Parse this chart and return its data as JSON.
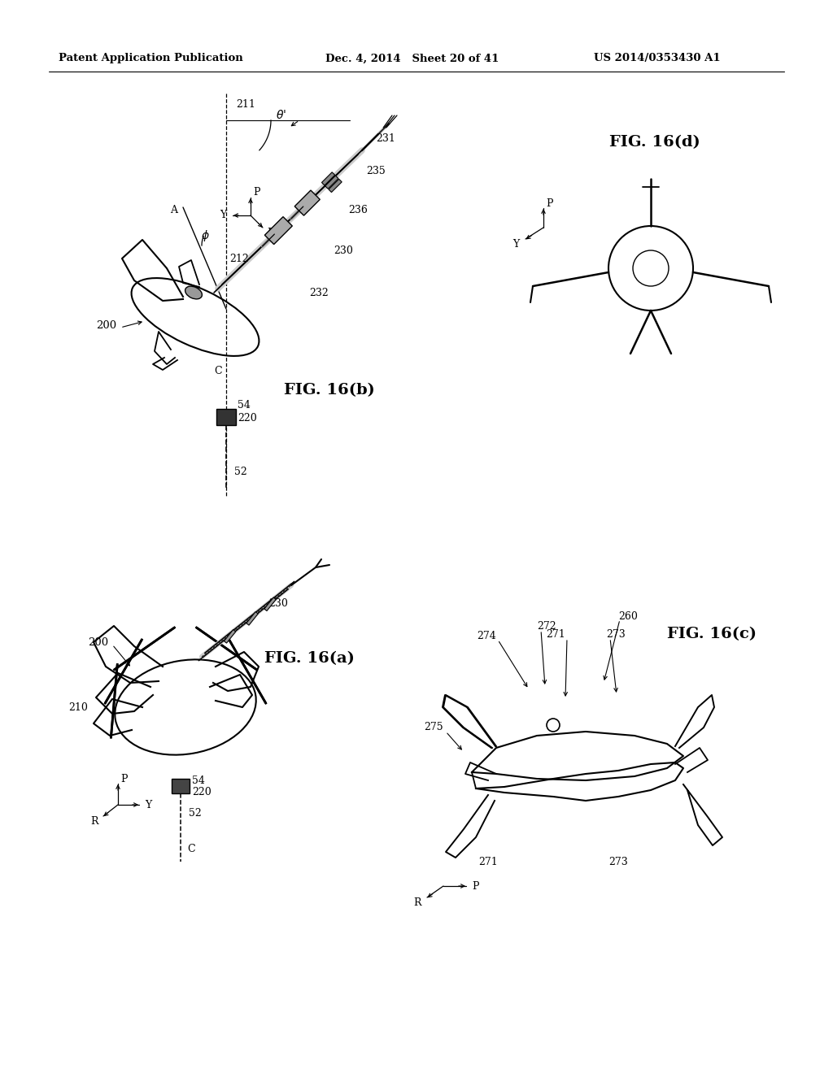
{
  "bg_color": "#ffffff",
  "header_left": "Patent Application Publication",
  "header_mid": "Dec. 4, 2014   Sheet 20 of 41",
  "header_right": "US 2014/0353430 A1",
  "fig_labels": {
    "16b": "FIG. 16(b)",
    "16a": "FIG. 16(a)",
    "16c": "FIG. 16(c)",
    "16d": "FIG. 16(d)"
  },
  "line_color": "#000000",
  "text_color": "#000000",
  "header_fontsize": 9.5,
  "label_fontsize": 14,
  "annot_fontsize": 9
}
